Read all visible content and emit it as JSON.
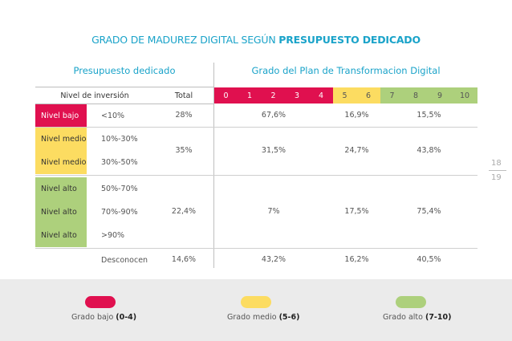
{
  "title": {
    "prefix": "GRADO DE MADUREZ DIGITAL SEGÚN ",
    "bold": "PRESUPUESTO DEDICADO"
  },
  "sections": {
    "left": "Presupuesto dedicado",
    "right": "Grado del Plan de Transformacion Digital"
  },
  "headers": {
    "level": "Nivel de inversión",
    "total": "Total"
  },
  "scale": [
    "0",
    "1",
    "2",
    "3",
    "4",
    "5",
    "6",
    "7",
    "8",
    "9",
    "10"
  ],
  "levels": {
    "low": "Nivel bajo",
    "mid": "Nivel medio",
    "high": "Nivel alto"
  },
  "ranges": {
    "r1": "<10%",
    "r2": "10%-30%",
    "r3": "30%-50%",
    "r4": "50%-70%",
    "r5": "70%-90%",
    "r6": ">90%",
    "r7": "Desconocen"
  },
  "rows": {
    "g1": {
      "total": "28%",
      "low": "67,6%",
      "mid": "16,9%",
      "high": "15,5%"
    },
    "g2": {
      "total": "35%",
      "low": "31,5%",
      "mid": "24,7%",
      "high": "43,8%"
    },
    "g3": {
      "total": "22,4%",
      "low": "7%",
      "mid": "17,5%",
      "high": "75,4%"
    },
    "g4": {
      "total": "14,6%",
      "low": "43,2%",
      "mid": "16,2%",
      "high": "40,5%"
    }
  },
  "page": {
    "a": "18",
    "b": "19"
  },
  "legend": {
    "low": {
      "text": "Grado bajo ",
      "range": "(0-4)"
    },
    "mid": {
      "text": "Grado medio ",
      "range": "(5-6)"
    },
    "high": {
      "text": "Grado alto ",
      "range": "(7-10)"
    }
  },
  "colors": {
    "accent": "#1aa3c9",
    "low": "#e0104f",
    "mid": "#fcdc61",
    "high": "#add07c"
  }
}
